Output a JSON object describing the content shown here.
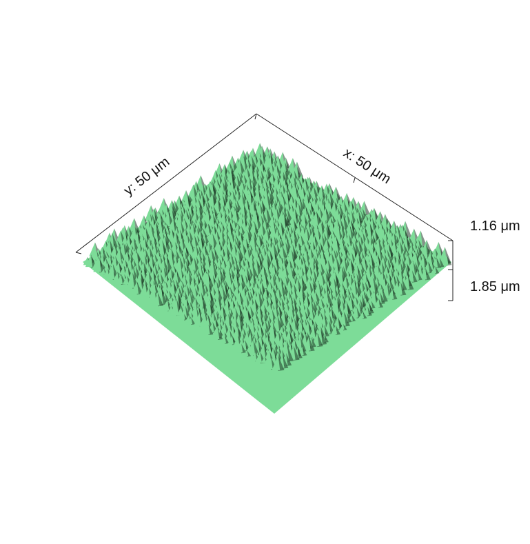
{
  "figure": {
    "x_axis_label": "x: 50 μm",
    "y_axis_label": "y: 50 μm",
    "z_upper_label": "1.16 μm",
    "z_lower_label": "1.85 μm",
    "surface_color": "#7ddc98",
    "shadow_color": "#1f3a28",
    "axis_color": "#222222"
  }
}
